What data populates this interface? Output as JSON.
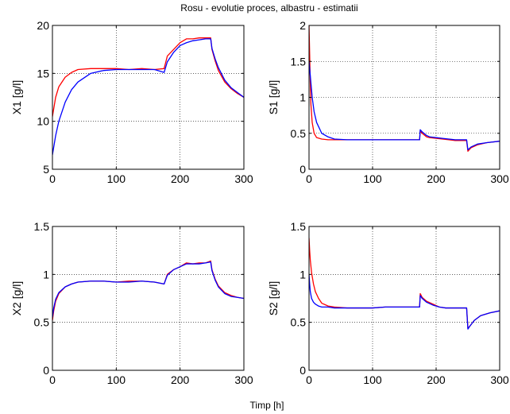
{
  "title": "Rosu - evolutie proces, albastru - estimatii",
  "common_xlabel": "Timp [h]",
  "colors": {
    "process": "#ff0000",
    "estimate": "#0000ff",
    "grid": "#000000"
  },
  "chart_data": [
    {
      "type": "line",
      "ylabel": "X1 [g/l]",
      "xlim": [
        0,
        300
      ],
      "ylim": [
        5,
        20
      ],
      "xticks": [
        0,
        100,
        200,
        300
      ],
      "yticks": [
        5,
        10,
        15,
        20
      ],
      "grid": true,
      "series": [
        {
          "color": "#ff0000",
          "x": [
            0,
            5,
            10,
            20,
            30,
            40,
            60,
            80,
            100,
            120,
            140,
            160,
            175,
            180,
            190,
            200,
            210,
            220,
            230,
            240,
            248,
            250,
            255,
            260,
            270,
            280,
            290,
            300
          ],
          "y": [
            10.5,
            12.5,
            13.6,
            14.6,
            15.1,
            15.4,
            15.5,
            15.5,
            15.5,
            15.4,
            15.5,
            15.4,
            15.5,
            16.8,
            17.5,
            18.2,
            18.6,
            18.6,
            18.7,
            18.7,
            18.7,
            17.5,
            16.3,
            15.3,
            14.1,
            13.4,
            12.9,
            12.5
          ]
        },
        {
          "color": "#0000ff",
          "x": [
            0,
            5,
            10,
            20,
            30,
            40,
            60,
            80,
            100,
            120,
            140,
            160,
            175,
            180,
            190,
            200,
            210,
            220,
            230,
            240,
            248,
            250,
            255,
            260,
            270,
            280,
            290,
            300
          ],
          "y": [
            6.5,
            8.5,
            10.0,
            12.0,
            13.3,
            14.1,
            15.0,
            15.3,
            15.4,
            15.4,
            15.4,
            15.4,
            15.1,
            16.2,
            17.2,
            17.9,
            18.2,
            18.4,
            18.5,
            18.6,
            18.6,
            17.6,
            16.5,
            15.6,
            14.3,
            13.5,
            13.0,
            12.5
          ]
        }
      ]
    },
    {
      "type": "line",
      "ylabel": "S1 [g/l]",
      "xlim": [
        0,
        300
      ],
      "ylim": [
        0,
        2
      ],
      "xticks": [
        0,
        100,
        200,
        300
      ],
      "yticks": [
        0,
        0.5,
        1,
        1.5,
        2
      ],
      "grid": true,
      "series": [
        {
          "color": "#ff0000",
          "x": [
            0,
            1,
            2,
            3,
            5,
            8,
            12,
            20,
            30,
            40,
            60,
            80,
            100,
            120,
            150,
            174,
            175,
            178,
            185,
            190,
            200,
            210,
            220,
            230,
            240,
            248,
            250,
            255,
            265,
            280,
            300
          ],
          "y": [
            2.0,
            1.6,
            1.2,
            0.9,
            0.65,
            0.5,
            0.44,
            0.42,
            0.41,
            0.41,
            0.41,
            0.41,
            0.41,
            0.41,
            0.41,
            0.41,
            0.53,
            0.5,
            0.45,
            0.44,
            0.43,
            0.42,
            0.41,
            0.4,
            0.4,
            0.4,
            0.25,
            0.3,
            0.34,
            0.37,
            0.39
          ]
        },
        {
          "color": "#0000ff",
          "x": [
            0,
            1,
            2,
            3,
            5,
            8,
            12,
            20,
            30,
            40,
            60,
            80,
            100,
            120,
            150,
            174,
            175,
            178,
            185,
            190,
            200,
            210,
            220,
            230,
            240,
            248,
            250,
            255,
            265,
            280,
            300
          ],
          "y": [
            1.5,
            1.4,
            1.3,
            1.2,
            1.0,
            0.8,
            0.65,
            0.5,
            0.45,
            0.42,
            0.41,
            0.41,
            0.41,
            0.41,
            0.41,
            0.41,
            0.55,
            0.52,
            0.47,
            0.45,
            0.44,
            0.43,
            0.42,
            0.41,
            0.41,
            0.41,
            0.27,
            0.31,
            0.35,
            0.37,
            0.39
          ]
        }
      ]
    },
    {
      "type": "line",
      "ylabel": "X2 [g/l]",
      "xlim": [
        0,
        300
      ],
      "ylim": [
        0,
        1.5
      ],
      "xticks": [
        0,
        100,
        200,
        300
      ],
      "yticks": [
        0,
        0.5,
        1,
        1.5
      ],
      "grid": true,
      "series": [
        {
          "color": "#ff0000",
          "x": [
            0,
            2,
            5,
            10,
            20,
            30,
            40,
            60,
            80,
            100,
            120,
            140,
            160,
            175,
            180,
            190,
            200,
            210,
            220,
            230,
            240,
            248,
            250,
            255,
            260,
            270,
            280,
            290,
            300
          ],
          "y": [
            0.52,
            0.62,
            0.72,
            0.8,
            0.87,
            0.9,
            0.92,
            0.93,
            0.93,
            0.92,
            0.93,
            0.93,
            0.92,
            0.9,
            1.0,
            1.05,
            1.08,
            1.12,
            1.11,
            1.12,
            1.12,
            1.14,
            1.05,
            0.95,
            0.88,
            0.81,
            0.78,
            0.76,
            0.75
          ]
        },
        {
          "color": "#0000ff",
          "x": [
            0,
            2,
            5,
            10,
            20,
            30,
            40,
            60,
            80,
            100,
            120,
            140,
            160,
            175,
            180,
            190,
            200,
            210,
            220,
            230,
            240,
            248,
            250,
            255,
            260,
            270,
            280,
            290,
            300
          ],
          "y": [
            0.55,
            0.65,
            0.74,
            0.81,
            0.87,
            0.9,
            0.92,
            0.93,
            0.93,
            0.92,
            0.92,
            0.93,
            0.92,
            0.9,
            0.99,
            1.05,
            1.08,
            1.11,
            1.11,
            1.11,
            1.12,
            1.13,
            1.04,
            0.94,
            0.87,
            0.8,
            0.77,
            0.76,
            0.75
          ]
        }
      ]
    },
    {
      "type": "line",
      "ylabel": "S2 [g/l]",
      "xlim": [
        0,
        300
      ],
      "ylim": [
        0,
        1.5
      ],
      "xticks": [
        0,
        100,
        200,
        300
      ],
      "yticks": [
        0,
        0.5,
        1,
        1.5
      ],
      "grid": true,
      "series": [
        {
          "color": "#ff0000",
          "x": [
            0,
            1,
            2,
            4,
            7,
            10,
            15,
            20,
            30,
            40,
            60,
            80,
            100,
            120,
            150,
            174,
            175,
            178,
            185,
            195,
            205,
            215,
            230,
            248,
            250,
            253,
            260,
            270,
            285,
            300
          ],
          "y": [
            1.38,
            1.25,
            1.15,
            1.02,
            0.9,
            0.82,
            0.75,
            0.7,
            0.67,
            0.66,
            0.65,
            0.65,
            0.65,
            0.66,
            0.66,
            0.66,
            0.8,
            0.76,
            0.72,
            0.69,
            0.66,
            0.65,
            0.65,
            0.65,
            0.44,
            0.46,
            0.52,
            0.57,
            0.6,
            0.62
          ]
        },
        {
          "color": "#0000ff",
          "x": [
            0,
            1,
            2,
            4,
            7,
            10,
            15,
            20,
            30,
            40,
            60,
            80,
            100,
            120,
            150,
            174,
            175,
            178,
            185,
            195,
            205,
            215,
            230,
            248,
            250,
            253,
            260,
            270,
            285,
            300
          ],
          "y": [
            1.0,
            0.9,
            0.82,
            0.75,
            0.71,
            0.69,
            0.67,
            0.66,
            0.66,
            0.65,
            0.65,
            0.65,
            0.65,
            0.66,
            0.66,
            0.66,
            0.78,
            0.75,
            0.71,
            0.68,
            0.66,
            0.65,
            0.65,
            0.65,
            0.43,
            0.46,
            0.52,
            0.57,
            0.6,
            0.62
          ]
        }
      ]
    }
  ]
}
